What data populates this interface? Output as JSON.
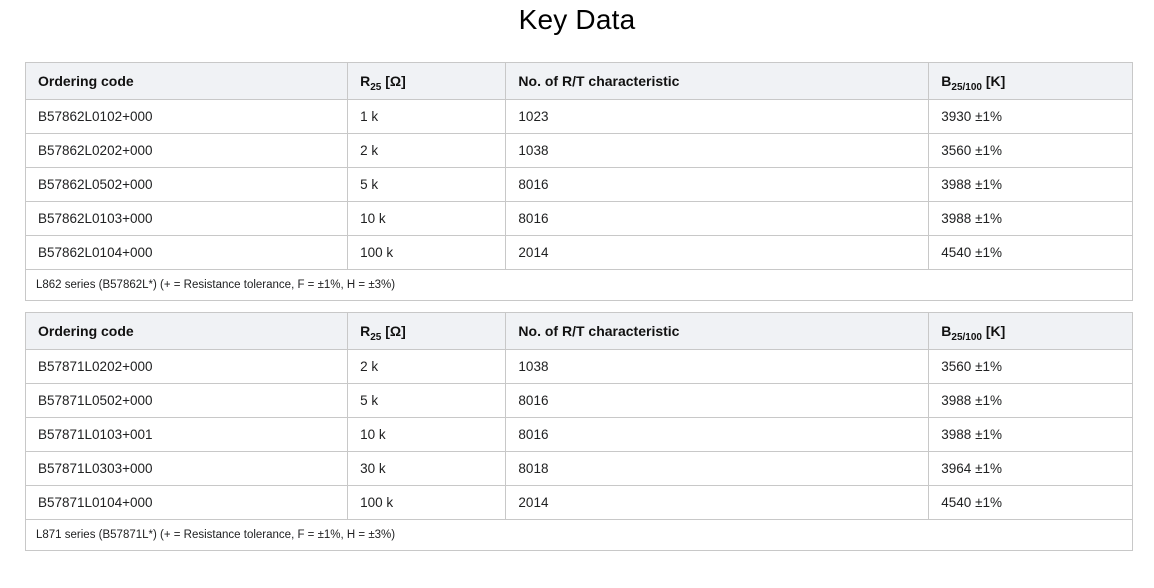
{
  "page_title": "Key Data",
  "colors": {
    "header_bg": "#f0f2f5",
    "table_border": "#c8c8c8",
    "text": "#202122"
  },
  "tables": [
    {
      "name": "L862 series table",
      "columns": [
        {
          "base": "Ordering code",
          "sub": "",
          "unit": ""
        },
        {
          "base": "R",
          "sub": "25",
          "unit": " [Ω]"
        },
        {
          "base": "No. of R/T characteristic",
          "sub": "",
          "unit": ""
        },
        {
          "base": "B",
          "sub": "25/100",
          "unit": " [K]"
        }
      ],
      "rows": [
        [
          "B57862L0102+000",
          "1 k",
          "1023",
          "3930 ±1%"
        ],
        [
          "B57862L0202+000",
          "2 k",
          "1038",
          "3560 ±1%"
        ],
        [
          "B57862L0502+000",
          "5 k",
          "8016",
          "3988 ±1%"
        ],
        [
          "B57862L0103+000",
          "10 k",
          "8016",
          "3988 ±1%"
        ],
        [
          "B57862L0104+000",
          "100 k",
          "2014",
          "4540 ±1%"
        ]
      ],
      "footer": "L862 series (B57862L*) (+ = Resistance tolerance, F = ±1%, H = ±3%)"
    },
    {
      "name": "L871 series table",
      "columns": [
        {
          "base": "Ordering code",
          "sub": "",
          "unit": ""
        },
        {
          "base": "R",
          "sub": "25",
          "unit": " [Ω]"
        },
        {
          "base": "No. of R/T characteristic",
          "sub": "",
          "unit": ""
        },
        {
          "base": "B",
          "sub": "25/100",
          "unit": " [K]"
        }
      ],
      "rows": [
        [
          "B57871L0202+000",
          "2 k",
          "1038",
          "3560 ±1%"
        ],
        [
          "B57871L0502+000",
          "5 k",
          "8016",
          "3988 ±1%"
        ],
        [
          "B57871L0103+001",
          "10 k",
          "8016",
          "3988 ±1%"
        ],
        [
          "B57871L0303+000",
          "30 k",
          "8018",
          "3964 ±1%"
        ],
        [
          "B57871L0104+000",
          "100 k",
          "2014",
          "4540 ±1%"
        ]
      ],
      "footer": "L871 series (B57871L*) (+ = Resistance tolerance, F = ±1%, H = ±3%)"
    }
  ]
}
